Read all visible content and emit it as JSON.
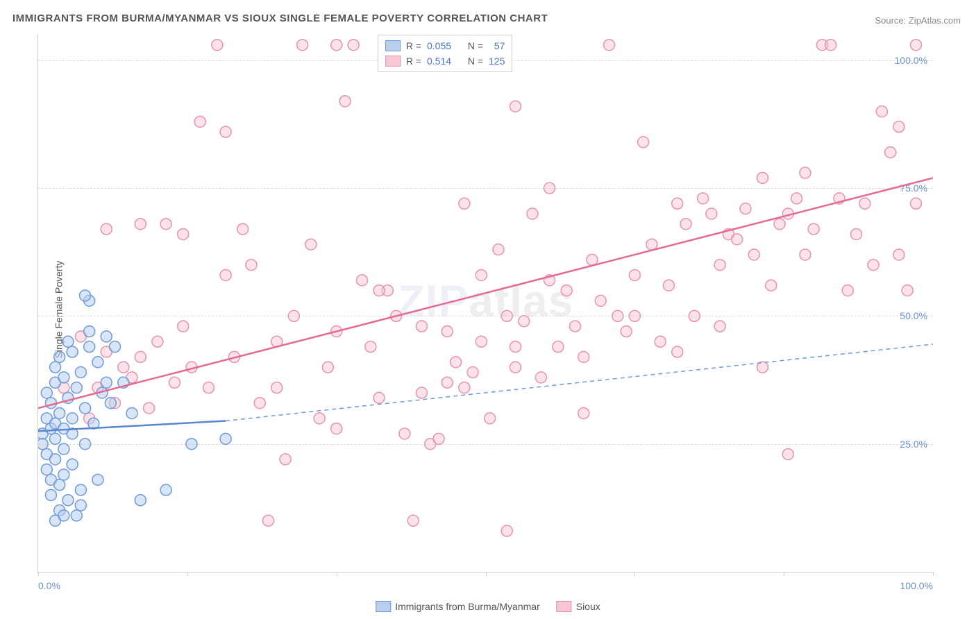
{
  "title": "IMMIGRANTS FROM BURMA/MYANMAR VS SIOUX SINGLE FEMALE POVERTY CORRELATION CHART",
  "source_label": "Source: ",
  "source_name": "ZipAtlas.com",
  "yaxis_title": "Single Female Poverty",
  "watermark": {
    "z": "ZIP",
    "rest": "atlas"
  },
  "chart": {
    "type": "scatter",
    "xlim": [
      0,
      105
    ],
    "ylim": [
      0,
      105
    ],
    "grid_color": "#e0e0e0",
    "background_color": "#ffffff",
    "axis_color": "#cccccc",
    "yticks": [
      25,
      50,
      75,
      100
    ],
    "ytick_labels": [
      "25.0%",
      "50.0%",
      "75.0%",
      "100.0%"
    ],
    "xticks": [
      0,
      17.5,
      35,
      52.5,
      70,
      87.5,
      105
    ],
    "xtick_labels_shown": {
      "0": "0.0%",
      "105": "100.0%"
    },
    "ytick_label_color": "#6b8fd4",
    "xtick_label_color": "#6b8fd4",
    "marker_radius": 8,
    "marker_stroke_width": 1.5,
    "line_width": 2.5
  },
  "series_a": {
    "name": "Immigrants from Burma/Myanmar",
    "fill_color": "#b8cfee",
    "stroke_color": "#6d9adb",
    "fill_opacity": 0.55,
    "R": "0.055",
    "N": "57",
    "regression": {
      "x1": 0,
      "y1": 27.5,
      "x2_solid": 22,
      "y2_solid": 29.5,
      "x2": 105,
      "y2": 44.5
    },
    "line_solid_color": "#5a85cf",
    "line_dash_color": "#6d9adb",
    "points": [
      [
        0.5,
        27
      ],
      [
        0.5,
        25
      ],
      [
        1,
        23
      ],
      [
        1,
        30
      ],
      [
        1,
        35
      ],
      [
        1,
        20
      ],
      [
        1.5,
        15
      ],
      [
        1.5,
        18
      ],
      [
        1.5,
        28
      ],
      [
        1.5,
        33
      ],
      [
        2,
        26
      ],
      [
        2,
        29
      ],
      [
        2,
        22
      ],
      [
        2,
        37
      ],
      [
        2,
        40
      ],
      [
        2.5,
        12
      ],
      [
        2.5,
        17
      ],
      [
        2.5,
        31
      ],
      [
        2.5,
        42
      ],
      [
        3,
        24
      ],
      [
        3,
        28
      ],
      [
        3,
        19
      ],
      [
        3,
        38
      ],
      [
        3.5,
        14
      ],
      [
        3.5,
        34
      ],
      [
        3.5,
        45
      ],
      [
        4,
        21
      ],
      [
        4,
        27
      ],
      [
        4,
        30
      ],
      [
        4,
        43
      ],
      [
        4.5,
        11
      ],
      [
        4.5,
        36
      ],
      [
        5,
        16
      ],
      [
        5,
        13
      ],
      [
        5,
        39
      ],
      [
        5.5,
        25
      ],
      [
        5.5,
        32
      ],
      [
        6,
        44
      ],
      [
        6,
        47
      ],
      [
        6,
        53
      ],
      [
        6.5,
        29
      ],
      [
        7,
        41
      ],
      [
        7,
        18
      ],
      [
        7.5,
        35
      ],
      [
        8,
        46
      ],
      [
        8,
        37
      ],
      [
        8.5,
        33
      ],
      [
        9,
        44
      ],
      [
        10,
        37
      ],
      [
        11,
        31
      ],
      [
        12,
        14
      ],
      [
        15,
        16
      ],
      [
        18,
        25
      ],
      [
        22,
        26
      ],
      [
        5.5,
        54
      ],
      [
        2,
        10
      ],
      [
        3,
        11
      ]
    ]
  },
  "series_b": {
    "name": "Sioux",
    "fill_color": "#f7c7d4",
    "stroke_color": "#e793ac",
    "fill_opacity": 0.5,
    "R": "0.514",
    "N": "125",
    "regression": {
      "x1": 0,
      "y1": 32,
      "x2": 105,
      "y2": 77
    },
    "line_color": "#e56a8f",
    "points": [
      [
        3,
        36
      ],
      [
        5,
        46
      ],
      [
        6,
        30
      ],
      [
        7,
        36
      ],
      [
        8,
        43
      ],
      [
        8,
        67
      ],
      [
        9,
        33
      ],
      [
        10,
        40
      ],
      [
        11,
        38
      ],
      [
        12,
        42
      ],
      [
        13,
        32
      ],
      [
        14,
        45
      ],
      [
        15,
        68
      ],
      [
        16,
        37
      ],
      [
        17,
        48
      ],
      [
        17,
        66
      ],
      [
        18,
        40
      ],
      [
        19,
        88
      ],
      [
        20,
        36
      ],
      [
        21,
        103
      ],
      [
        22,
        86
      ],
      [
        22,
        58
      ],
      [
        23,
        42
      ],
      [
        24,
        67
      ],
      [
        25,
        60
      ],
      [
        26,
        33
      ],
      [
        27,
        10
      ],
      [
        28,
        45
      ],
      [
        28,
        36
      ],
      [
        29,
        22
      ],
      [
        30,
        50
      ],
      [
        31,
        103
      ],
      [
        32,
        64
      ],
      [
        33,
        30
      ],
      [
        34,
        40
      ],
      [
        35,
        47
      ],
      [
        35,
        28
      ],
      [
        36,
        92
      ],
      [
        37,
        103
      ],
      [
        38,
        57
      ],
      [
        39,
        44
      ],
      [
        40,
        34
      ],
      [
        41,
        55
      ],
      [
        42,
        50
      ],
      [
        43,
        27
      ],
      [
        44,
        10
      ],
      [
        45,
        35
      ],
      [
        46,
        25
      ],
      [
        47,
        26
      ],
      [
        48,
        47
      ],
      [
        49,
        41
      ],
      [
        50,
        72
      ],
      [
        51,
        39
      ],
      [
        52,
        58
      ],
      [
        53,
        30
      ],
      [
        54,
        63
      ],
      [
        55,
        50
      ],
      [
        56,
        44
      ],
      [
        56,
        91
      ],
      [
        57,
        49
      ],
      [
        58,
        70
      ],
      [
        59,
        38
      ],
      [
        60,
        57
      ],
      [
        61,
        44
      ],
      [
        62,
        55
      ],
      [
        63,
        48
      ],
      [
        64,
        42
      ],
      [
        64,
        31
      ],
      [
        65,
        61
      ],
      [
        66,
        53
      ],
      [
        67,
        103
      ],
      [
        68,
        50
      ],
      [
        69,
        47
      ],
      [
        70,
        58
      ],
      [
        71,
        84
      ],
      [
        72,
        64
      ],
      [
        73,
        45
      ],
      [
        74,
        56
      ],
      [
        75,
        72
      ],
      [
        76,
        68
      ],
      [
        77,
        50
      ],
      [
        78,
        73
      ],
      [
        79,
        70
      ],
      [
        80,
        60
      ],
      [
        81,
        66
      ],
      [
        82,
        65
      ],
      [
        83,
        71
      ],
      [
        84,
        62
      ],
      [
        85,
        77
      ],
      [
        86,
        56
      ],
      [
        87,
        68
      ],
      [
        88,
        70
      ],
      [
        89,
        73
      ],
      [
        90,
        62
      ],
      [
        91,
        67
      ],
      [
        92,
        103
      ],
      [
        93,
        103
      ],
      [
        94,
        73
      ],
      [
        95,
        55
      ],
      [
        96,
        66
      ],
      [
        97,
        72
      ],
      [
        98,
        60
      ],
      [
        99,
        90
      ],
      [
        100,
        82
      ],
      [
        101,
        62
      ],
      [
        101,
        87
      ],
      [
        102,
        55
      ],
      [
        103,
        103
      ],
      [
        103,
        72
      ],
      [
        85,
        40
      ],
      [
        88,
        23
      ],
      [
        90,
        78
      ],
      [
        48,
        37
      ],
      [
        52,
        45
      ],
      [
        56,
        40
      ],
      [
        60,
        75
      ],
      [
        12,
        68
      ],
      [
        35,
        103
      ],
      [
        40,
        55
      ],
      [
        45,
        48
      ],
      [
        50,
        36
      ],
      [
        75,
        43
      ],
      [
        80,
        48
      ],
      [
        70,
        50
      ],
      [
        55,
        8
      ]
    ]
  },
  "legend_top": {
    "R_label": "R =",
    "N_label": "N ="
  },
  "legend_bottom": {
    "item_a": "Immigrants from Burma/Myanmar",
    "item_b": "Sioux"
  }
}
